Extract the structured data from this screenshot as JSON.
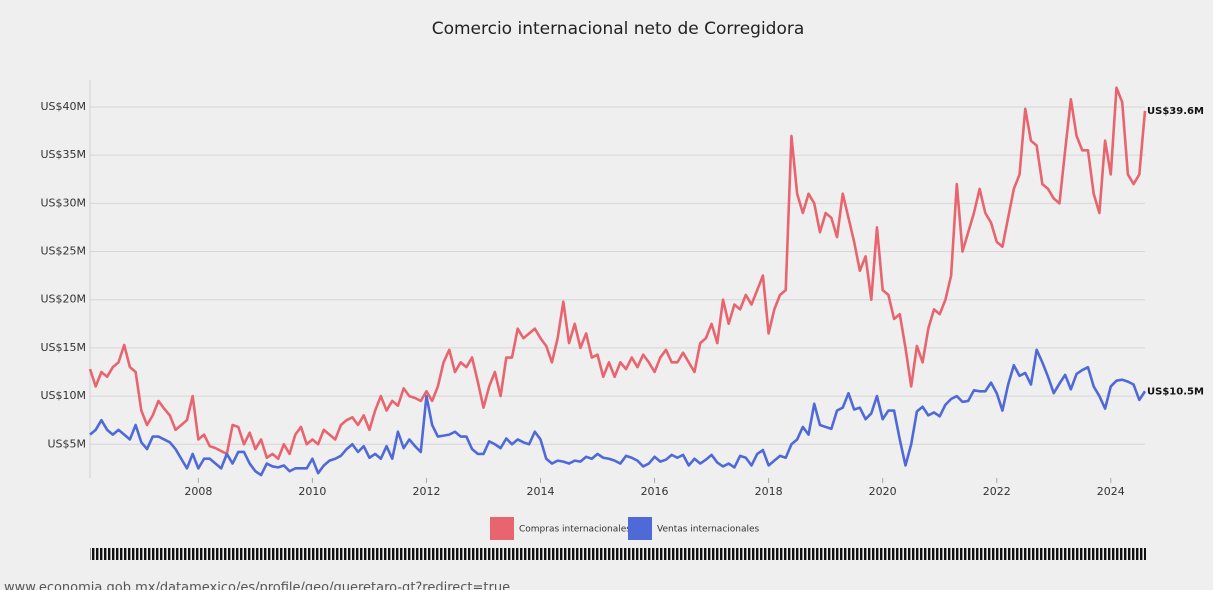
{
  "chart_data": {
    "type": "line",
    "title": "Comercio internacional neto de Corregidora",
    "x": [
      2006.1,
      2006.2,
      2006.3,
      2006.4,
      2006.5,
      2006.6,
      2006.7,
      2006.8,
      2006.9,
      2007.0,
      2007.1,
      2007.2,
      2007.3,
      2007.4,
      2007.5,
      2007.6,
      2007.7,
      2007.8,
      2007.9,
      2008.0,
      2008.1,
      2008.2,
      2008.3,
      2008.4,
      2008.5,
      2008.6,
      2008.7,
      2008.8,
      2008.9,
      2009.0,
      2009.1,
      2009.2,
      2009.3,
      2009.4,
      2009.5,
      2009.6,
      2009.7,
      2009.8,
      2009.9,
      2010.0,
      2010.1,
      2010.2,
      2010.3,
      2010.4,
      2010.5,
      2010.6,
      2010.7,
      2010.8,
      2010.9,
      2011.0,
      2011.1,
      2011.2,
      2011.3,
      2011.4,
      2011.5,
      2011.6,
      2011.7,
      2011.8,
      2011.9,
      2012.0,
      2012.1,
      2012.2,
      2012.3,
      2012.4,
      2012.5,
      2012.6,
      2012.7,
      2012.8,
      2012.9,
      2013.0,
      2013.1,
      2013.2,
      2013.3,
      2013.4,
      2013.5,
      2013.6,
      2013.7,
      2013.8,
      2013.9,
      2014.0,
      2014.1,
      2014.2,
      2014.3,
      2014.4,
      2014.5,
      2014.6,
      2014.7,
      2014.8,
      2014.9,
      2015.0,
      2015.1,
      2015.2,
      2015.3,
      2015.4,
      2015.5,
      2015.6,
      2015.7,
      2015.8,
      2015.9,
      2016.0,
      2016.1,
      2016.2,
      2016.3,
      2016.4,
      2016.5,
      2016.6,
      2016.7,
      2016.8,
      2016.9,
      2017.0,
      2017.1,
      2017.2,
      2017.3,
      2017.4,
      2017.5,
      2017.6,
      2017.7,
      2017.8,
      2017.9,
      2018.0,
      2018.1,
      2018.2,
      2018.3,
      2018.4,
      2018.5,
      2018.6,
      2018.7,
      2018.8,
      2018.9,
      2019.0,
      2019.1,
      2019.2,
      2019.3,
      2019.4,
      2019.5,
      2019.6,
      2019.7,
      2019.8,
      2019.9,
      2020.0,
      2020.1,
      2020.2,
      2020.3,
      2020.4,
      2020.5,
      2020.6,
      2020.7,
      2020.8,
      2020.9,
      2021.0,
      2021.1,
      2021.2,
      2021.3,
      2021.4,
      2021.5,
      2021.6,
      2021.7,
      2021.8,
      2021.9,
      2022.0,
      2022.1,
      2022.2,
      2022.3,
      2022.4,
      2022.5,
      2022.6,
      2022.7,
      2022.8,
      2022.9,
      2023.0,
      2023.1,
      2023.2,
      2023.3,
      2023.4,
      2023.5,
      2023.6,
      2023.7,
      2023.8,
      2023.9,
      2024.0,
      2024.1,
      2024.2,
      2024.3,
      2024.4,
      2024.5,
      2024.6
    ],
    "series": [
      {
        "name": "Compras internacionales",
        "color": "#e8646e",
        "end_label": "US$39.6M",
        "values": [
          12.8,
          11,
          12.5,
          12,
          13,
          13.5,
          15.3,
          13,
          12.5,
          8.5,
          7,
          8,
          9.5,
          8.7,
          8,
          6.5,
          7,
          7.5,
          10,
          5.5,
          6,
          4.8,
          4.6,
          4.3,
          4,
          7,
          6.8,
          5,
          6.2,
          4.5,
          5.5,
          3.6,
          4,
          3.5,
          5,
          4,
          6,
          6.8,
          5,
          5.5,
          5,
          6.5,
          6,
          5.5,
          7,
          7.5,
          7.8,
          7,
          8,
          6.5,
          8.5,
          10,
          8.5,
          9.5,
          9,
          10.8,
          10,
          9.8,
          9.5,
          10.5,
          9.5,
          11,
          13.5,
          14.8,
          12.5,
          13.5,
          13,
          14,
          11.5,
          8.8,
          11,
          12.5,
          10,
          14,
          14,
          17,
          16,
          16.5,
          17,
          16,
          15.2,
          13.5,
          16,
          19.8,
          15.5,
          17.5,
          15,
          16.5,
          14,
          14.3,
          12,
          13.5,
          12,
          13.5,
          12.8,
          14,
          13,
          14.3,
          13.5,
          12.5,
          14,
          14.8,
          13.5,
          13.5,
          14.5,
          13.5,
          12.5,
          15.5,
          16,
          17.5,
          15.5,
          20,
          17.5,
          19.5,
          19,
          20.5,
          19.5,
          21,
          22.5,
          16.5,
          19,
          20.5,
          21,
          37,
          31,
          29,
          31,
          30,
          27,
          29,
          28.5,
          26.5,
          31,
          28.5,
          26,
          23,
          24.5,
          20,
          27.5,
          21,
          20.5,
          18,
          18.5,
          15,
          11,
          15.2,
          13.5,
          17,
          19,
          18.5,
          20,
          22.5,
          32,
          25,
          27,
          29,
          31.5,
          29,
          28,
          26,
          25.5,
          28.5,
          31.5,
          33,
          39.8,
          36.5,
          36,
          32,
          31.5,
          30.5,
          30,
          35.5,
          40.8,
          37,
          35.5,
          35.5,
          31,
          29,
          36.5,
          33,
          42,
          40.5,
          33,
          32,
          33,
          39.6
        ]
      },
      {
        "name": "Ventas internacionales",
        "color": "#4f6ad8",
        "end_label": "US$10.5M",
        "values": [
          6,
          6.5,
          7.5,
          6.5,
          6,
          6.5,
          6,
          5.5,
          7,
          5.2,
          4.5,
          5.8,
          5.8,
          5.5,
          5.2,
          4.5,
          3.5,
          2.5,
          4,
          2.5,
          3.5,
          3.5,
          3,
          2.5,
          4,
          3,
          4.2,
          4.2,
          3,
          2.2,
          1.8,
          3,
          2.7,
          2.6,
          2.8,
          2.2,
          2.5,
          2.5,
          2.5,
          3.5,
          2,
          2.8,
          3.3,
          3.5,
          3.8,
          4.5,
          5,
          4.2,
          4.8,
          3.6,
          4,
          3.5,
          4.8,
          3.5,
          6.3,
          4.6,
          5.5,
          4.8,
          4.2,
          10,
          7,
          5.8,
          5.9,
          6,
          6.3,
          5.8,
          5.8,
          4.5,
          4,
          4,
          5.3,
          5,
          4.6,
          5.6,
          5,
          5.5,
          5.2,
          5,
          6.3,
          5.5,
          3.5,
          3,
          3.3,
          3.2,
          3,
          3.3,
          3.2,
          3.7,
          3.5,
          4,
          3.6,
          3.5,
          3.3,
          3,
          3.8,
          3.6,
          3.3,
          2.7,
          3,
          3.7,
          3.2,
          3.4,
          3.9,
          3.6,
          3.9,
          2.8,
          3.5,
          3,
          3.4,
          3.9,
          3.1,
          2.7,
          3,
          2.6,
          3.8,
          3.6,
          2.8,
          4,
          4.4,
          2.8,
          3.3,
          3.8,
          3.6,
          5,
          5.5,
          6.8,
          6,
          9.2,
          7,
          6.8,
          6.6,
          8.5,
          8.8,
          10.3,
          8.6,
          8.8,
          7.6,
          8.2,
          10,
          7.6,
          8.5,
          8.5,
          5.5,
          2.8,
          5,
          8.4,
          8.9,
          8,
          8.3,
          7.9,
          9.1,
          9.7,
          10,
          9.4,
          9.5,
          10.6,
          10.5,
          10.5,
          11.4,
          10.3,
          8.5,
          11.2,
          13.2,
          12.1,
          12.4,
          11.2,
          14.8,
          13.5,
          12,
          10.3,
          11.3,
          12.2,
          10.7,
          12.3,
          12.7,
          13,
          11,
          10,
          8.7,
          11,
          11.6,
          11.7,
          11.5,
          11.2,
          9.6,
          10.5
        ]
      }
    ],
    "xlim": [
      2006.1,
      2024.6
    ],
    "xticks": [
      2008,
      2010,
      2012,
      2014,
      2016,
      2018,
      2020,
      2022,
      2024
    ],
    "ylim": [
      1.5,
      42.8
    ],
    "yticks": [
      {
        "value": 5,
        "label": "US$5M"
      },
      {
        "value": 10,
        "label": "US$10M"
      },
      {
        "value": 15,
        "label": "US$15M"
      },
      {
        "value": 20,
        "label": "US$20M"
      },
      {
        "value": 25,
        "label": "US$25M"
      },
      {
        "value": 30,
        "label": "US$30M"
      },
      {
        "value": 35,
        "label": "US$35M"
      },
      {
        "value": 40,
        "label": "US$40M"
      }
    ],
    "grid": true,
    "legend": "bottom"
  },
  "footer_url": "www.economia.gob.mx/datamexico/es/profile/geo/queretaro-qt?redirect=true"
}
